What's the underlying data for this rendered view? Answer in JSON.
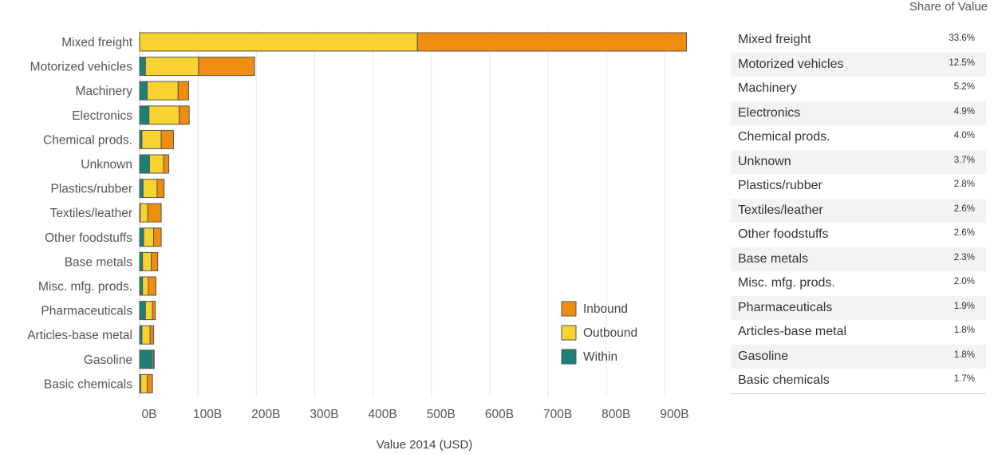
{
  "chart_data": {
    "type": "bar",
    "stacked": true,
    "orientation": "horizontal",
    "categories": [
      "Mixed freight",
      "Motorized vehicles",
      "Machinery",
      "Electronics",
      "Chemical prods.",
      "Unknown",
      "Plastics/rubber",
      "Textiles/leather",
      "Other foodstuffs",
      "Base metals",
      "Misc. mfg. prods.",
      "Pharmaceuticals",
      "Articles-base metal",
      "Gasoline",
      "Basic chemicals"
    ],
    "series": [
      {
        "name": "Within",
        "color": "#1f7f77",
        "values": [
          0,
          10,
          13,
          16,
          4,
          17,
          6,
          1,
          7,
          5,
          5,
          10,
          4,
          22,
          2
        ]
      },
      {
        "name": "Outbound",
        "color": "#f8d22e",
        "values": [
          476,
          91,
          53,
          52,
          33,
          24,
          24,
          13,
          17,
          15,
          10,
          12,
          14,
          2,
          11
        ]
      },
      {
        "name": "Inbound",
        "color": "#f08c10",
        "values": [
          461,
          96,
          18,
          17,
          21,
          9,
          12,
          23,
          13,
          11,
          13,
          5,
          6,
          1,
          9
        ]
      }
    ],
    "xlabel": "Value 2014 (USD)",
    "xticks": [
      "0B",
      "100B",
      "200B",
      "300B",
      "400B",
      "500B",
      "600B",
      "700B",
      "800B",
      "900B"
    ],
    "xtick_values": [
      0,
      100,
      200,
      300,
      400,
      500,
      600,
      700,
      800,
      900
    ],
    "xlim": [
      0,
      940
    ],
    "grid": "vertical",
    "legend": {
      "placement": "bottom-right",
      "entries": [
        "Inbound",
        "Outbound",
        "Within"
      ]
    },
    "share_table": {
      "title": "Share of Value",
      "rows": [
        {
          "name": "Mixed freight",
          "share": "33.6%"
        },
        {
          "name": "Motorized vehicles",
          "share": "12.5%"
        },
        {
          "name": "Machinery",
          "share": "5.2%"
        },
        {
          "name": "Electronics",
          "share": "4.9%"
        },
        {
          "name": "Chemical prods.",
          "share": "4.0%"
        },
        {
          "name": "Unknown",
          "share": "3.7%"
        },
        {
          "name": "Plastics/rubber",
          "share": "2.8%"
        },
        {
          "name": "Textiles/leather",
          "share": "2.6%"
        },
        {
          "name": "Other foodstuffs",
          "share": "2.6%"
        },
        {
          "name": "Base metals",
          "share": "2.3%"
        },
        {
          "name": "Misc. mfg. prods.",
          "share": "2.0%"
        },
        {
          "name": "Pharmaceuticals",
          "share": "1.9%"
        },
        {
          "name": "Articles-base metal",
          "share": "1.8%"
        },
        {
          "name": "Gasoline",
          "share": "1.8%"
        },
        {
          "name": "Basic chemicals",
          "share": "1.7%"
        }
      ]
    }
  }
}
